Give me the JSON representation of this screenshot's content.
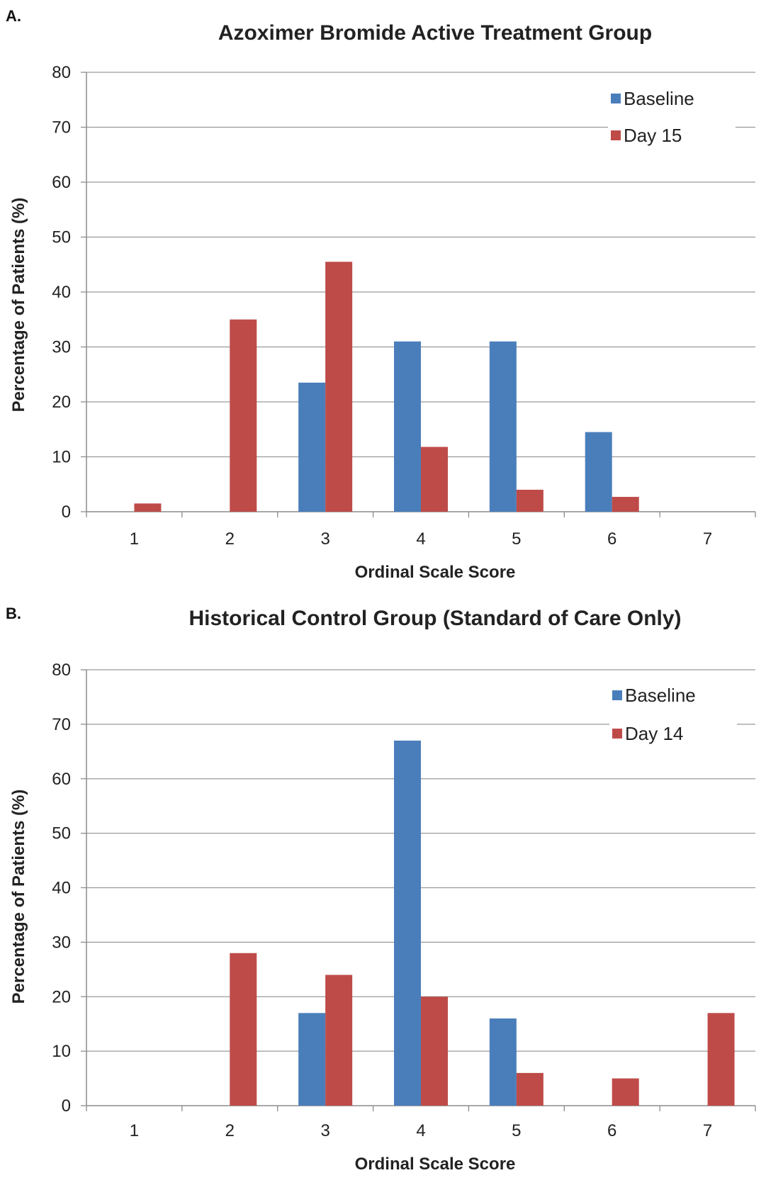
{
  "colors": {
    "baseline": "#4a7ebb",
    "followup": "#be4b48",
    "grid": "#9a9a9a",
    "axis": "#8c8c8c"
  },
  "chart_data": [
    {
      "panel": "A.",
      "type": "bar",
      "title": "Azoximer Bromide Active Treatment Group",
      "xlabel": "Ordinal Scale Score",
      "ylabel": "Percentage of Patients (%)",
      "ylim": [
        0,
        80
      ],
      "yticks": [
        "0",
        "10",
        "20",
        "30",
        "40",
        "50",
        "60",
        "70",
        "80"
      ],
      "categories": [
        "1",
        "2",
        "3",
        "4",
        "5",
        "6",
        "7"
      ],
      "grid": true,
      "legend_position": "top-right",
      "series": [
        {
          "name": "Baseline",
          "values": [
            0,
            0,
            23.5,
            31,
            31,
            14.5,
            0
          ]
        },
        {
          "name": "Day 15",
          "values": [
            1.5,
            35,
            45.5,
            11.8,
            4,
            2.7,
            0
          ]
        }
      ]
    },
    {
      "panel": "B.",
      "type": "bar",
      "title": "Historical Control Group (Standard of Care Only)",
      "xlabel": "Ordinal Scale Score",
      "ylabel": "Percentage of Patients (%)",
      "ylim": [
        0,
        80
      ],
      "yticks": [
        "0",
        "10",
        "20",
        "30",
        "40",
        "50",
        "60",
        "70",
        "80"
      ],
      "categories": [
        "1",
        "2",
        "3",
        "4",
        "5",
        "6",
        "7"
      ],
      "grid": true,
      "legend_position": "top-right",
      "series": [
        {
          "name": "Baseline",
          "values": [
            0,
            0,
            17,
            67,
            16,
            0,
            0
          ]
        },
        {
          "name": "Day 14",
          "values": [
            0,
            28,
            24,
            20,
            6,
            5,
            17
          ]
        }
      ]
    }
  ]
}
